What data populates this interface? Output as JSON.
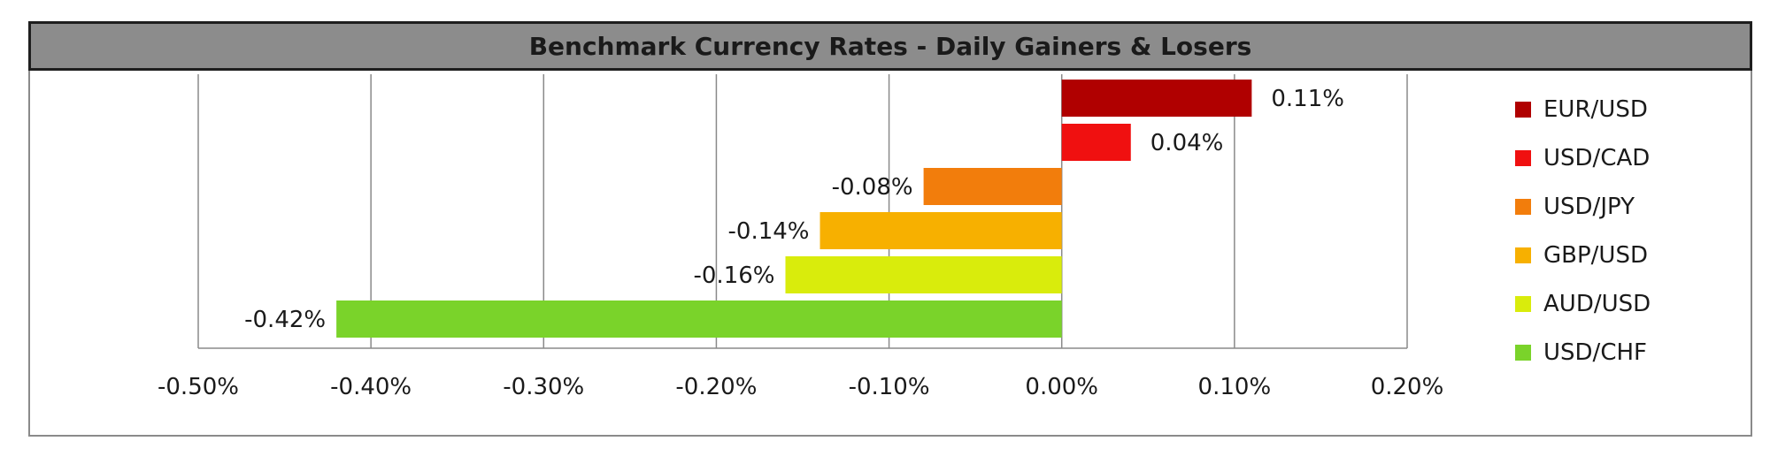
{
  "chart_data": {
    "type": "bar",
    "orientation": "horizontal",
    "title": "Benchmark Currency Rates - Daily Gainers & Losers",
    "xlabel": "",
    "ylabel": "",
    "xlim": [
      -0.5,
      0.2
    ],
    "x_ticks": [
      -0.5,
      -0.4,
      -0.3,
      -0.2,
      -0.1,
      0.0,
      0.1,
      0.2
    ],
    "x_tick_labels": [
      "-0.50%",
      "-0.40%",
      "-0.30%",
      "-0.20%",
      "-0.10%",
      "0.00%",
      "0.10%",
      "0.20%"
    ],
    "grid": true,
    "legend_position": "right",
    "categories": [
      "EUR/USD",
      "USD/CAD",
      "USD/JPY",
      "GBP/USD",
      "AUD/USD",
      "USD/CHF"
    ],
    "values": [
      0.11,
      0.04,
      -0.08,
      -0.14,
      -0.16,
      -0.42
    ],
    "value_labels": [
      "0.11%",
      "0.04%",
      "-0.08%",
      "-0.14%",
      "-0.16%",
      "-0.42%"
    ],
    "colors": [
      "#b00000",
      "#f01010",
      "#f27d0c",
      "#f7b000",
      "#d9ec0c",
      "#7ad32a"
    ]
  }
}
